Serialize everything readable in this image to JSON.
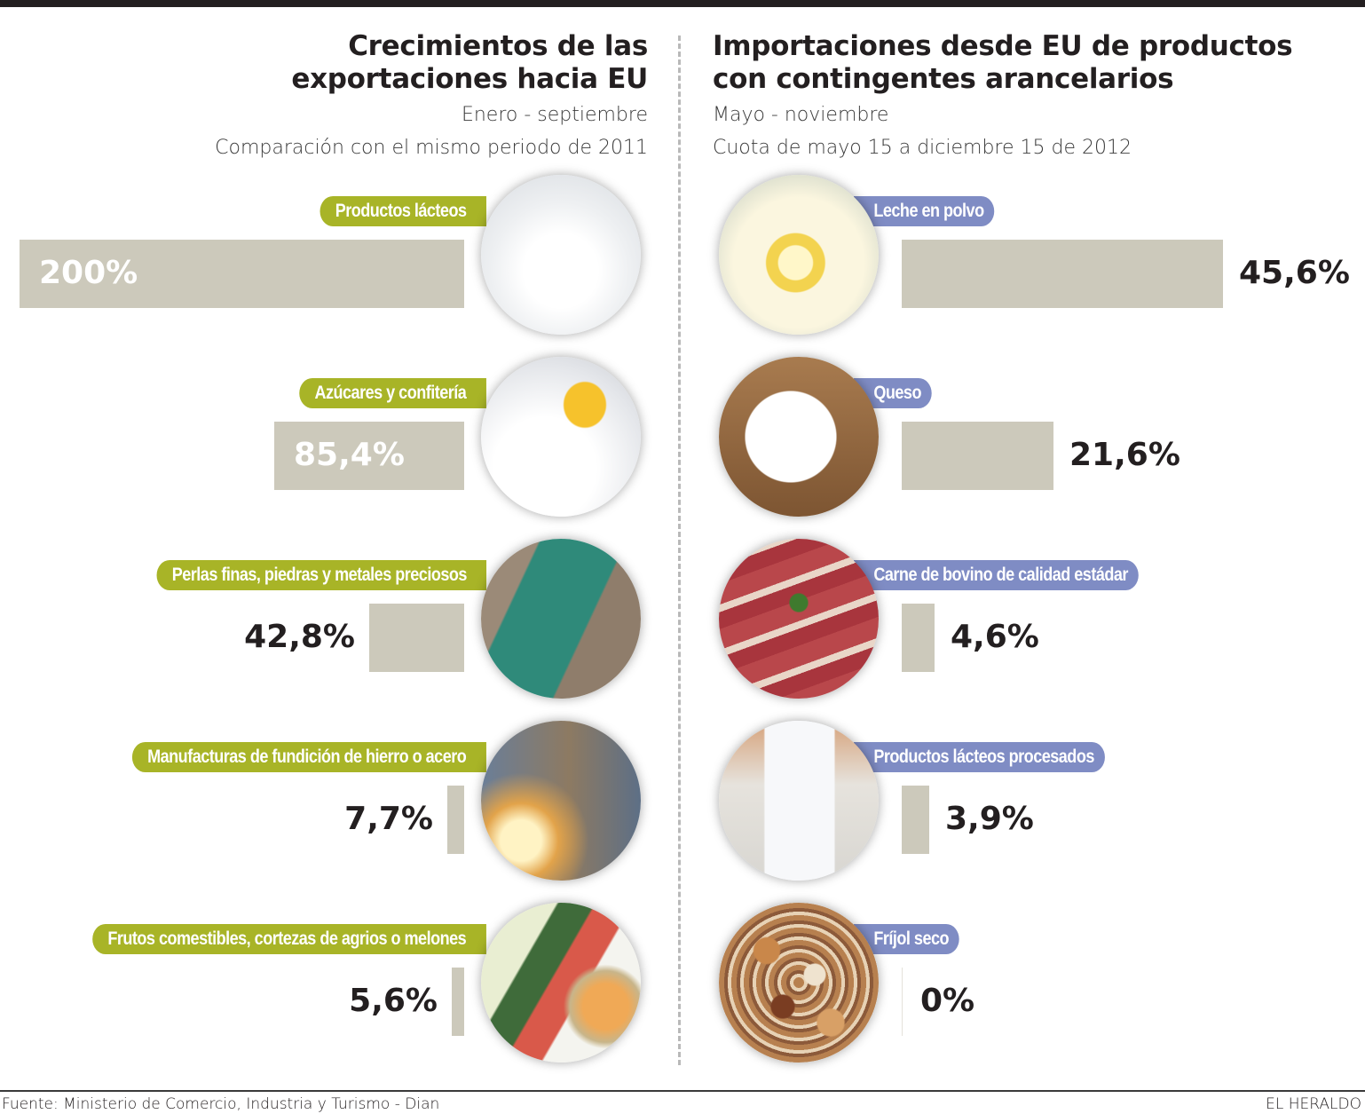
{
  "left_panel": {
    "title_line1": "Crecimientos de las",
    "title_line2": "exportaciones hacia EU",
    "subtitle1": "Enero - septiembre",
    "subtitle2": "Comparación con el mismo periodo de 2011",
    "label_color": "#a8b427"
  },
  "right_panel": {
    "title_line1": "Importaciones desde EU de productos",
    "title_line2": "con contingentes arancelarios",
    "subtitle1": "Mayo - noviembre",
    "subtitle2": "Cuota de mayo 15 a diciembre 15 de 2012",
    "label_color": "#7f8cc4"
  },
  "bar_color": "#ccc9bb",
  "chart_data": [
    {
      "type": "bar",
      "orientation": "horizontal",
      "title": "Crecimientos de las exportaciones hacia EU",
      "subtitle": "Enero - septiembre. Comparación con el mismo periodo de 2011",
      "categories": [
        "Productos lácteos",
        "Azúcares y confitería",
        "Perlas finas, piedras y metales preciosos",
        "Manufacturas de fundición de hierro o acero",
        "Frutos comestibles, cortezas de agrios o melones"
      ],
      "values": [
        200,
        85.4,
        42.8,
        7.7,
        5.6
      ],
      "value_labels": [
        "200%",
        "85,4%",
        "42,8%",
        "7,7%",
        "5,6%"
      ],
      "images": [
        "milk-products-photo",
        "sugar-lemon-photo",
        "emerald-gemstone-photo",
        "foundry-worker-photo",
        "melons-photo"
      ],
      "unit": "%",
      "direction": "right-to-left"
    },
    {
      "type": "bar",
      "orientation": "horizontal",
      "title": "Importaciones desde EU de productos con contingentes arancelarios",
      "subtitle": "Mayo - noviembre. Cuota de mayo 15 a diciembre 15 de 2012",
      "categories": [
        "Leche en polvo",
        "Queso",
        "Carne de bovino de calidad estádar",
        "Productos lácteos procesados",
        "Fríjol seco"
      ],
      "values": [
        45.6,
        21.6,
        4.6,
        3.9,
        0
      ],
      "value_labels": [
        "45,6%",
        "21,6%",
        "4,6%",
        "3,9%",
        "0%"
      ],
      "images": [
        "powdered-milk-photo",
        "cheese-photo",
        "beef-photo",
        "yogurt-photo",
        "dry-beans-photo"
      ],
      "unit": "%",
      "direction": "left-to-right"
    }
  ],
  "footer": {
    "source": "Fuente: Ministerio de Comercio, Industria y Turismo - Dian",
    "brand": "EL HERALDO"
  }
}
